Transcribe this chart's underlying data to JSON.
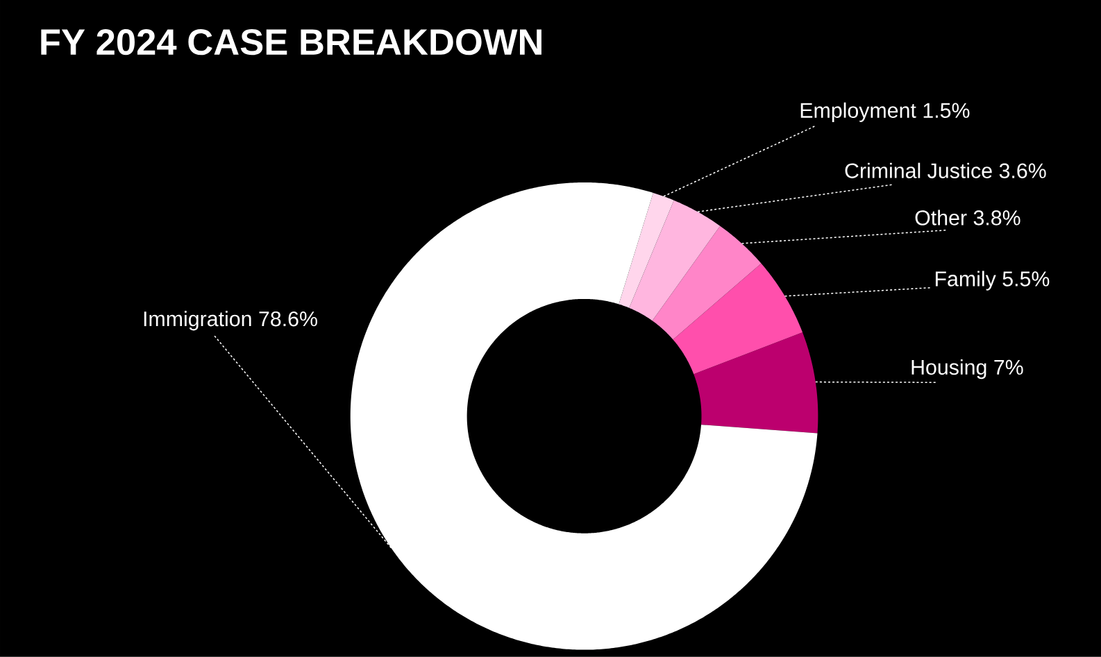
{
  "chart_data": {
    "type": "donut",
    "title": "FY 2024 CASE BREAKDOWN",
    "categories": [
      "Housing",
      "Family",
      "Other",
      "Criminal Justice",
      "Employment",
      "Immigration"
    ],
    "values": [
      7,
      5.5,
      3.8,
      3.6,
      1.5,
      78.6
    ],
    "value_labels": [
      "7%",
      "5.5%",
      "3.8%",
      "3.6%",
      "1.5%",
      "78.6%"
    ],
    "colors": [
      "#bc006e",
      "#ff4fac",
      "#ff85c8",
      "#ffb6df",
      "#ffd6ec",
      "#ffffff"
    ]
  }
}
